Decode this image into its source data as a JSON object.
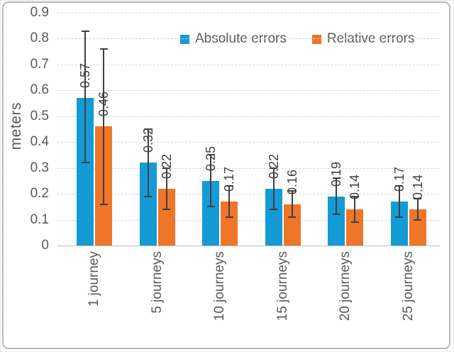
{
  "window": {
    "background": "#ffffff",
    "frame_border_color": "#b9b9b9"
  },
  "chart_data": {
    "type": "bar",
    "title": "",
    "xlabel": "",
    "ylabel": "meters",
    "ylim": [
      0,
      0.9
    ],
    "ytick_labels": [
      "0",
      "0.1",
      "0.2",
      "0.3",
      "0.4",
      "0.5",
      "0.6",
      "0.7",
      "0.8",
      "0.9"
    ],
    "categories": [
      "1 journey",
      "5 journeys",
      "10 journeys",
      "15 journeys",
      "20 journeys",
      "25 journeys"
    ],
    "grid": true,
    "gridline_color": "#d9d9d9",
    "legend_position": "top",
    "axis_text_color": "#595959",
    "data_label_color": "#404040",
    "error_bar_color": "#3f3f3f",
    "series": [
      {
        "name": "Absolute errors",
        "color": "#149BD6",
        "values": [
          0.57,
          0.32,
          0.25,
          0.22,
          0.19,
          0.17
        ],
        "value_labels": [
          "0.57",
          "0.32",
          "0.25",
          "0.22",
          "0.19",
          "0.17"
        ],
        "error_low": [
          0.32,
          0.19,
          0.15,
          0.14,
          0.12,
          0.11
        ],
        "error_high": [
          0.83,
          0.45,
          0.35,
          0.3,
          0.26,
          0.23
        ]
      },
      {
        "name": "Relative errors",
        "color": "#EF7528",
        "values": [
          0.46,
          0.22,
          0.17,
          0.16,
          0.14,
          0.14
        ],
        "value_labels": [
          "0.46",
          "0.22",
          "0.17",
          "0.16",
          "0.14",
          "0.14"
        ],
        "error_low": [
          0.16,
          0.14,
          0.11,
          0.11,
          0.09,
          0.1
        ],
        "error_high": [
          0.76,
          0.3,
          0.23,
          0.21,
          0.19,
          0.18
        ]
      }
    ]
  }
}
